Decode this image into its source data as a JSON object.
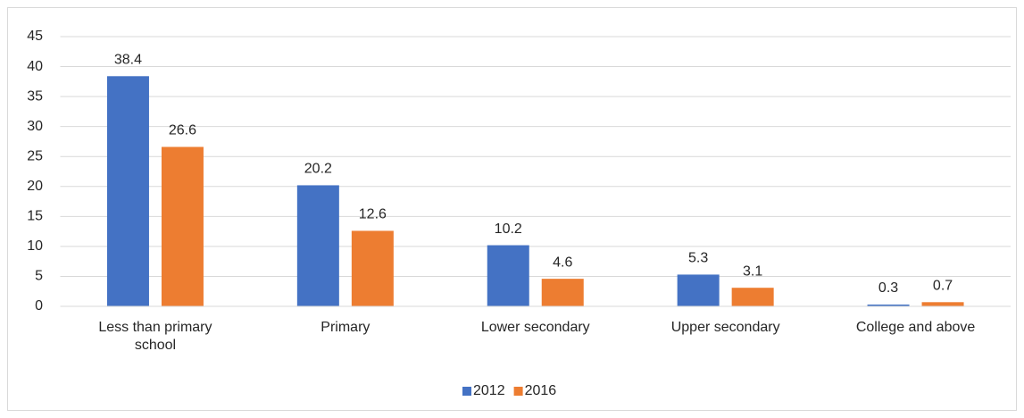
{
  "chart_data": {
    "type": "bar",
    "categories": [
      "Less than primary school",
      "Primary",
      "Lower secondary",
      "Upper secondary",
      "College and above"
    ],
    "series": [
      {
        "name": "2012",
        "color": "#4472c4",
        "values": [
          38.4,
          20.2,
          10.2,
          5.3,
          0.3
        ]
      },
      {
        "name": "2016",
        "color": "#ed7d31",
        "values": [
          26.6,
          12.6,
          4.6,
          3.1,
          0.7
        ]
      }
    ],
    "ylim": [
      0,
      45
    ],
    "yticks": [
      0,
      5,
      10,
      15,
      20,
      25,
      30,
      35,
      40,
      45
    ],
    "grid": true,
    "legend": "bottom"
  }
}
